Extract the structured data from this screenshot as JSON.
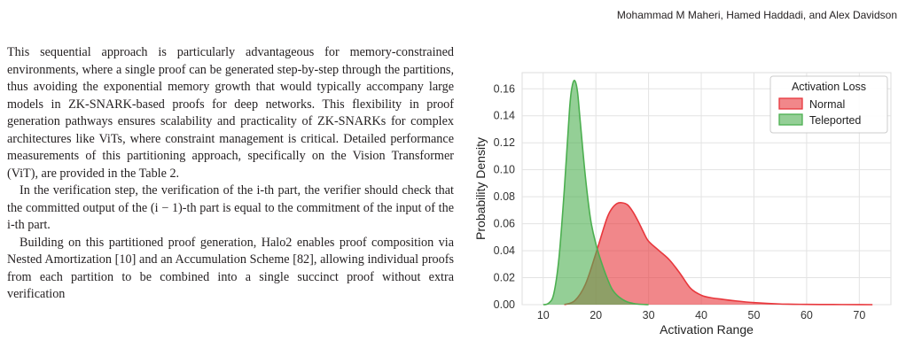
{
  "header": {
    "authors": "Mohammad M Maheri, Hamed Haddadi, and Alex Davidson"
  },
  "body": {
    "paragraphs": [
      "This sequential approach is particularly advantageous for memory-constrained environments, where a single proof can be generated step-by-step through the partitions, thus avoiding the exponential memory growth that would typically accompany large models in ZK-SNARK-based proofs for deep networks. This flexibility in proof generation pathways ensures scalability and practicality of ZK-SNARKs for complex architectures like ViTs, where constraint management is critical. Detailed performance measurements of this partitioning approach, specifically on the Vision Transformer (ViT), are provided in the Table 2.",
      "In the verification step, the verification of the i-th part, the verifier should check that the committed output of the (i − 1)-th part is equal to the commitment of the input of the i-th part.",
      "Building on this partitioned proof generation, Halo2 enables proof composition via Nested Amortization [10] and an Accumulation Scheme [82], allowing individual proofs from each partition to be combined into a single succinct proof without extra verification"
    ]
  },
  "chart_data": {
    "type": "area",
    "title": "",
    "xlabel": "Activation Range",
    "ylabel": "Probability Density",
    "xlim": [
      6,
      76
    ],
    "ylim": [
      0,
      0.172
    ],
    "xticks": [
      10,
      20,
      30,
      40,
      50,
      60,
      70
    ],
    "yticks": [
      0.0,
      0.02,
      0.04,
      0.06,
      0.08,
      0.1,
      0.12,
      0.14,
      0.16
    ],
    "ytick_labels": [
      "0.00",
      "0.02",
      "0.04",
      "0.06",
      "0.08",
      "0.10",
      "0.12",
      "0.14",
      "0.16"
    ],
    "grid": true,
    "legend": {
      "title": "Activation Loss",
      "position": "top-right"
    },
    "series": [
      {
        "name": "Normal",
        "color": "#e8373c",
        "x": [
          14,
          16,
          18,
          20,
          22,
          23,
          24,
          25,
          26,
          27,
          28,
          29,
          30,
          32,
          34,
          36,
          38,
          40,
          42,
          44,
          46,
          50,
          55,
          60,
          65,
          70,
          72.5
        ],
        "y": [
          0,
          0.003,
          0.015,
          0.038,
          0.063,
          0.071,
          0.075,
          0.0755,
          0.074,
          0.069,
          0.062,
          0.054,
          0.047,
          0.04,
          0.033,
          0.023,
          0.012,
          0.007,
          0.005,
          0.004,
          0.003,
          0.0015,
          0.0005,
          0.0002,
          0.0001,
          5e-05,
          0
        ]
      },
      {
        "name": "Teleported",
        "color": "#4caf50",
        "x": [
          10,
          11,
          12,
          13,
          14,
          15,
          15.5,
          16,
          16.5,
          17,
          18,
          19,
          20,
          21,
          22,
          23,
          24,
          25,
          26,
          27,
          28,
          30
        ],
        "y": [
          0,
          0.001,
          0.008,
          0.035,
          0.085,
          0.145,
          0.162,
          0.166,
          0.158,
          0.137,
          0.095,
          0.063,
          0.045,
          0.032,
          0.021,
          0.012,
          0.007,
          0.004,
          0.002,
          0.001,
          0.0004,
          0
        ]
      }
    ]
  }
}
